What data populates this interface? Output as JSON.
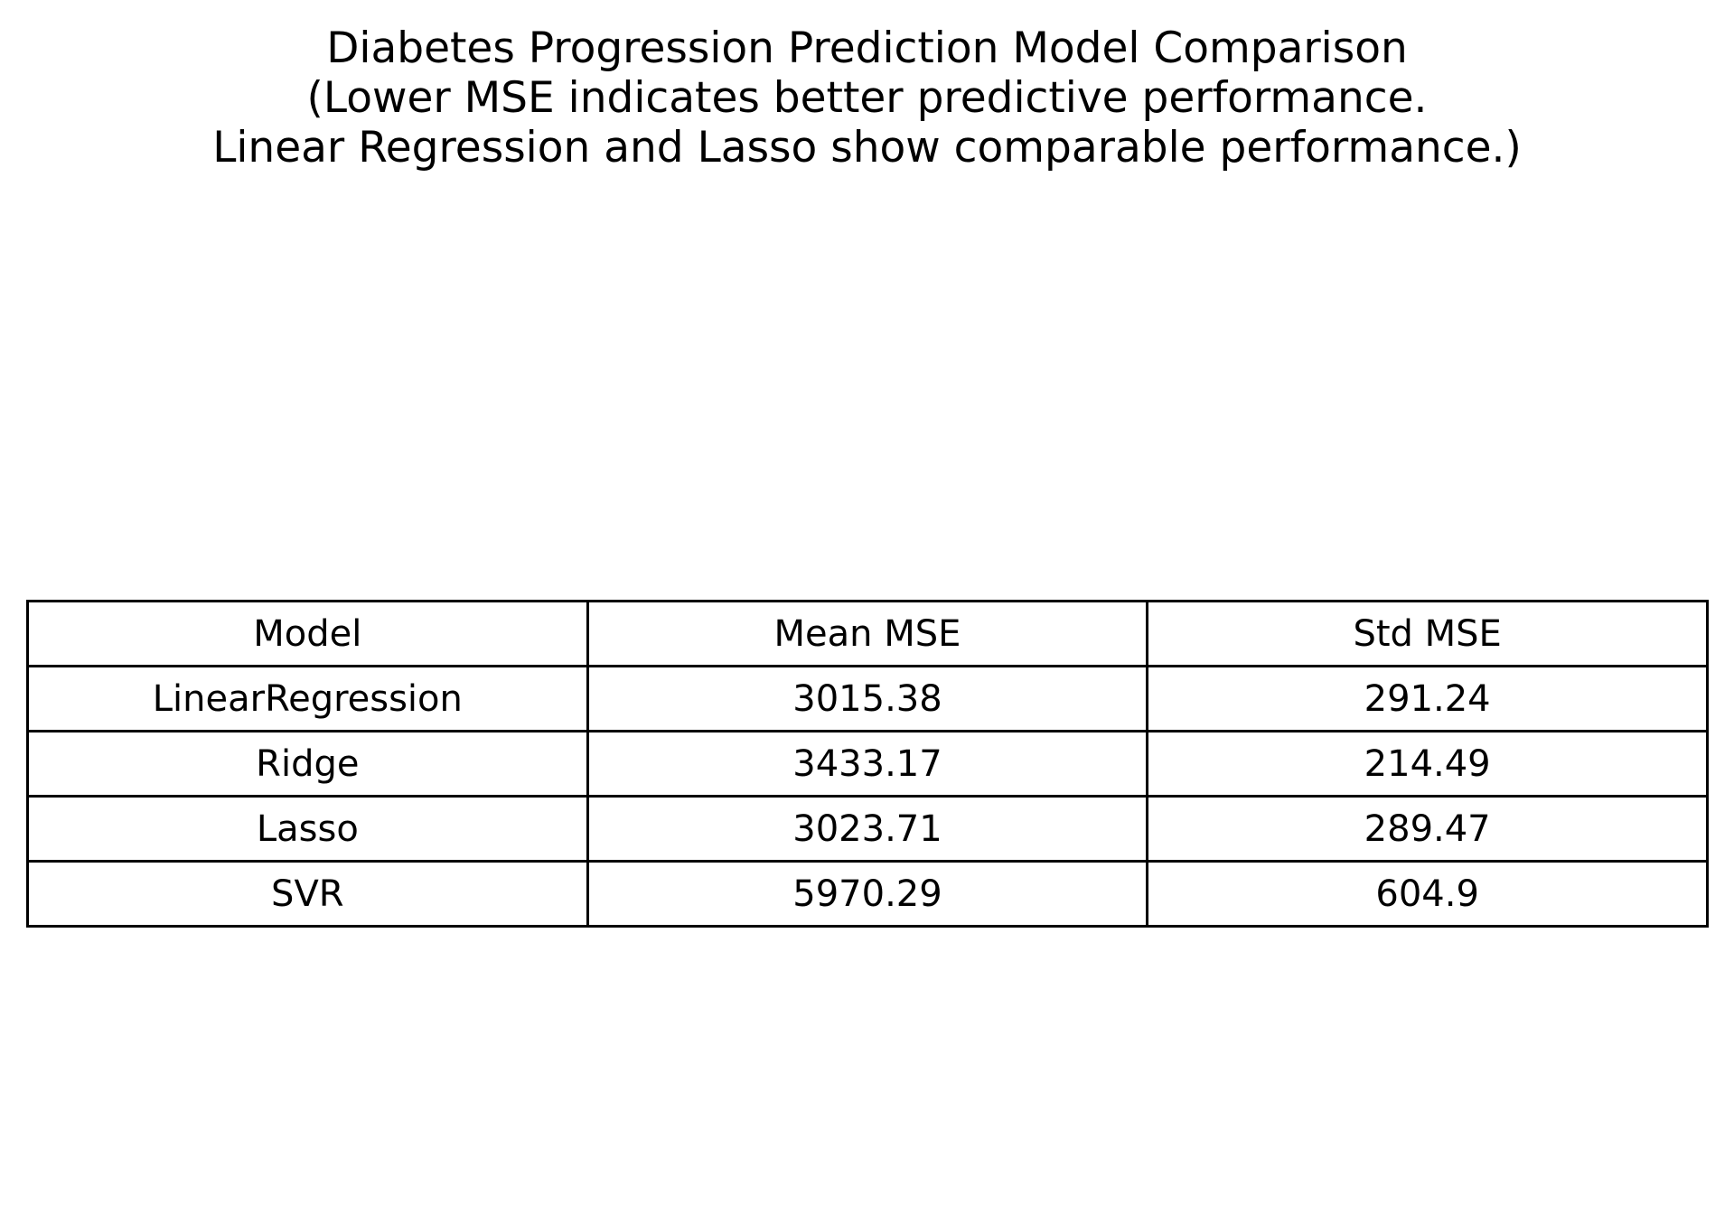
{
  "chart_data": {
    "type": "table",
    "title_lines": [
      "Diabetes Progression Prediction Model Comparison",
      "(Lower MSE indicates better predictive performance.",
      "Linear Regression and Lasso show comparable performance.)"
    ],
    "columns": [
      "Model",
      "Mean MSE",
      "Std MSE"
    ],
    "rows": [
      [
        "LinearRegression",
        "3015.38",
        "291.24"
      ],
      [
        "Ridge",
        "3433.17",
        "214.49"
      ],
      [
        "Lasso",
        "3023.71",
        "289.47"
      ],
      [
        "SVR",
        "5970.29",
        "604.9"
      ]
    ]
  }
}
